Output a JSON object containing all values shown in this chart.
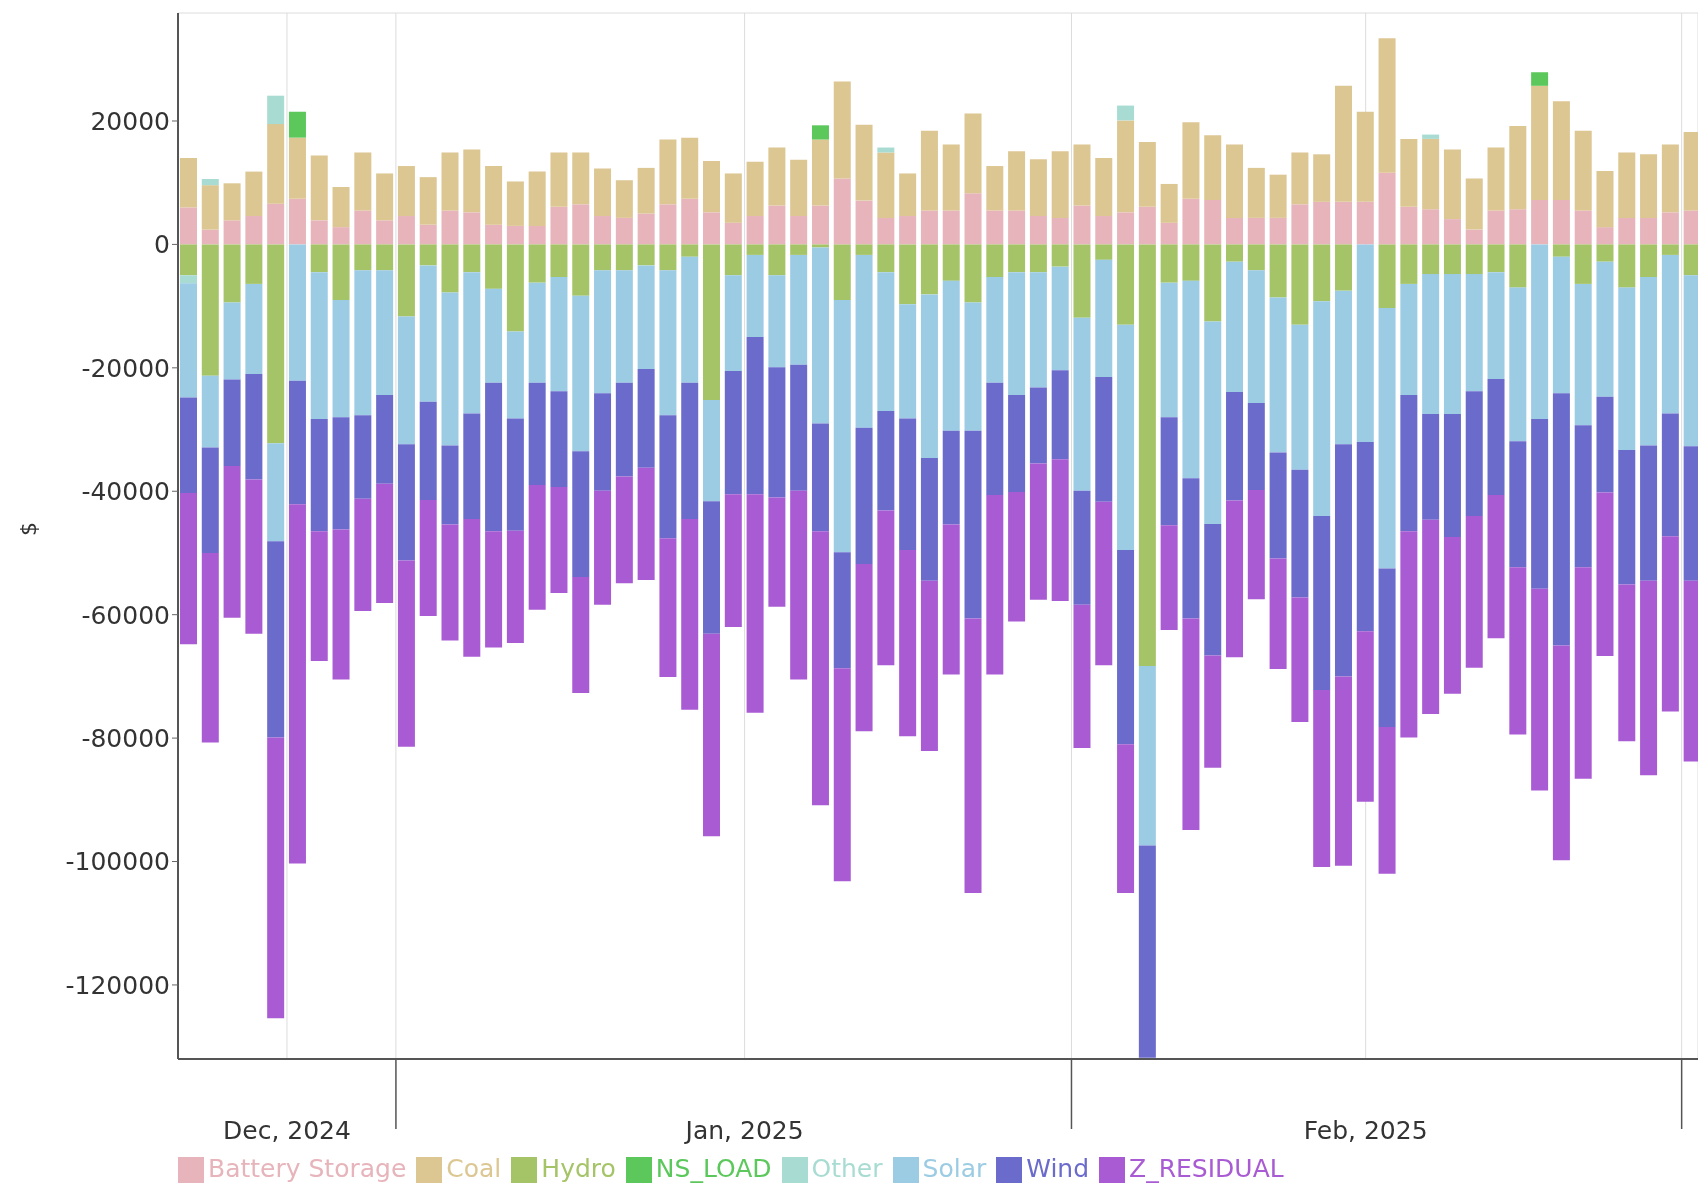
{
  "chart_data": {
    "type": "bar",
    "stacked": true,
    "ylabel": "$",
    "x": [
      "2024-12-22",
      "2024-12-23",
      "2024-12-24",
      "2024-12-25",
      "2024-12-26",
      "2024-12-27",
      "2024-12-28",
      "2024-12-29",
      "2024-12-30",
      "2024-12-31",
      "2025-01-01",
      "2025-01-02",
      "2025-01-03",
      "2025-01-04",
      "2025-01-05",
      "2025-01-06",
      "2025-01-07",
      "2025-01-08",
      "2025-01-09",
      "2025-01-10",
      "2025-01-11",
      "2025-01-12",
      "2025-01-13",
      "2025-01-14",
      "2025-01-15",
      "2025-01-16",
      "2025-01-17",
      "2025-01-18",
      "2025-01-19",
      "2025-01-20",
      "2025-01-21",
      "2025-01-22",
      "2025-01-23",
      "2025-01-24",
      "2025-01-25",
      "2025-01-26",
      "2025-01-27",
      "2025-01-28",
      "2025-01-29",
      "2025-01-30",
      "2025-01-31",
      "2025-02-01",
      "2025-02-02",
      "2025-02-03",
      "2025-02-04",
      "2025-02-05",
      "2025-02-06",
      "2025-02-07",
      "2025-02-08",
      "2025-02-09",
      "2025-02-10",
      "2025-02-11",
      "2025-02-12",
      "2025-02-13",
      "2025-02-14",
      "2025-02-15",
      "2025-02-16",
      "2025-02-17",
      "2025-02-18",
      "2025-02-19",
      "2025-02-20",
      "2025-02-21",
      "2025-02-22",
      "2025-02-23",
      "2025-02-24",
      "2025-02-25",
      "2025-02-26",
      "2025-02-27",
      "2025-02-28",
      "2025-03-01"
    ],
    "xlim": [
      "2024-12-21T12:00",
      "2025-03-01T06:00"
    ],
    "xticks": [
      {
        "value": "2024-12-26T12:00",
        "label": "Dec, 2024"
      },
      {
        "value": "2024-12-31T12:00",
        "label": null
      },
      {
        "value": "2025-01-16T12:00",
        "label": "Jan, 2025"
      },
      {
        "value": "2025-01-31T12:00",
        "label": null
      },
      {
        "value": "2025-02-14T00:00",
        "label": "Feb, 2025"
      },
      {
        "value": "2025-02-28T12:00",
        "label": null
      }
    ],
    "ylim": [
      -132000,
      37500
    ],
    "yticks": [
      20000,
      0,
      -20000,
      -40000,
      -60000,
      -80000,
      -100000,
      -120000
    ],
    "grid": true,
    "legend": "bottom",
    "series": [
      {
        "name": "Battery Storage",
        "color": "#e6b4ba",
        "values": [
          6000,
          2400,
          3900,
          4600,
          6600,
          7400,
          3900,
          2800,
          5500,
          3900,
          4600,
          3200,
          5500,
          5200,
          3200,
          3000,
          3000,
          6100,
          6500,
          4600,
          4300,
          5000,
          6500,
          7400,
          5200,
          3500,
          4600,
          6300,
          4600,
          6300,
          10700,
          7100,
          4300,
          4600,
          5500,
          5500,
          8300,
          5500,
          5500,
          4600,
          4300,
          6300,
          4600,
          5200,
          6100,
          3500,
          7400,
          7200,
          4300,
          4300,
          4300,
          6500,
          6900,
          6900,
          6900,
          11600,
          6100,
          5700,
          4100,
          2400,
          5500,
          5700,
          7200,
          7200,
          5500,
          2800,
          4300,
          4300,
          5200,
          5500
        ]
      },
      {
        "name": "Coal",
        "color": "#dcc692",
        "values": [
          8000,
          7200,
          6000,
          7200,
          12900,
          9900,
          10500,
          6500,
          9400,
          7600,
          8100,
          7700,
          9400,
          10200,
          9500,
          7200,
          8800,
          8800,
          8400,
          7700,
          6100,
          7400,
          10500,
          9900,
          8300,
          8000,
          8800,
          9400,
          9100,
          10700,
          15700,
          12300,
          10600,
          6900,
          12900,
          10700,
          12900,
          7200,
          9600,
          9200,
          10800,
          9900,
          9400,
          14900,
          10500,
          6300,
          12400,
          10500,
          11900,
          8100,
          7000,
          8400,
          7700,
          18800,
          14600,
          21800,
          11000,
          11400,
          11300,
          8300,
          10200,
          13500,
          18500,
          16000,
          12900,
          9100,
          10600,
          10300,
          11000,
          12700
        ]
      },
      {
        "name": "Hydro",
        "color": "#a5c468",
        "values": [
          -5000,
          -21300,
          -9400,
          -6400,
          -32200,
          0,
          -4500,
          -9000,
          -4200,
          -4200,
          -11700,
          -3400,
          -7800,
          -4500,
          -7200,
          -14100,
          -6200,
          -5300,
          -8300,
          -4200,
          -4200,
          -3400,
          -4200,
          -2000,
          -25200,
          -5000,
          -1700,
          -5000,
          -1700,
          -500,
          -9000,
          -1700,
          -4500,
          -9700,
          -8100,
          -5900,
          -9400,
          -5300,
          -4500,
          -4500,
          -3600,
          -11900,
          -2500,
          -13000,
          -68300,
          -6200,
          -5900,
          -12500,
          -2800,
          -4200,
          -8600,
          -13000,
          -9200,
          -7500,
          0,
          -10300,
          -6400,
          -4800,
          -4800,
          -4800,
          -4500,
          -7000,
          0,
          -2000,
          -6400,
          -2800,
          -7000,
          -5300,
          -1700,
          -5000
        ]
      },
      {
        "name": "NS_LOAD",
        "color": "#5cc85c",
        "values": [
          0,
          0,
          0,
          0,
          0,
          4200,
          0,
          0,
          0,
          0,
          0,
          0,
          0,
          0,
          0,
          0,
          0,
          0,
          0,
          0,
          0,
          0,
          0,
          0,
          0,
          0,
          0,
          0,
          0,
          2300,
          0,
          0,
          0,
          0,
          0,
          0,
          0,
          0,
          0,
          0,
          0,
          0,
          0,
          0,
          0,
          0,
          0,
          0,
          0,
          0,
          0,
          0,
          0,
          0,
          0,
          0,
          0,
          0,
          0,
          0,
          0,
          0,
          2200,
          0,
          0,
          0,
          0,
          0,
          0,
          0
        ]
      },
      {
        "name": "Other",
        "color": "#a8dcd2",
        "values": [
          -1300,
          1000,
          0,
          0,
          4600,
          0,
          0,
          0,
          0,
          0,
          0,
          0,
          0,
          0,
          0,
          0,
          0,
          0,
          0,
          0,
          0,
          0,
          0,
          0,
          0,
          0,
          0,
          0,
          0,
          0,
          0,
          0,
          800,
          0,
          0,
          0,
          0,
          0,
          0,
          0,
          0,
          0,
          0,
          2400,
          0,
          0,
          0,
          0,
          0,
          0,
          0,
          0,
          0,
          0,
          0,
          0,
          0,
          700,
          0,
          0,
          0,
          0,
          0,
          0,
          0,
          0,
          0,
          0,
          0,
          0
        ]
      },
      {
        "name": "Solar",
        "color": "#9ccbe4",
        "values": [
          -18500,
          -11600,
          -12500,
          -14600,
          -15900,
          -22100,
          -23800,
          -19000,
          -23500,
          -20200,
          -20700,
          -22100,
          -24800,
          -22900,
          -15200,
          -14100,
          -16200,
          -18500,
          -25200,
          -19900,
          -18200,
          -16800,
          -23500,
          -20400,
          -16400,
          -15500,
          -13300,
          -14900,
          -17800,
          -28500,
          -40900,
          -28000,
          -22500,
          -18500,
          -26500,
          -24300,
          -20800,
          -17100,
          -19900,
          -18700,
          -16800,
          -28000,
          -19000,
          -36500,
          -29100,
          -21800,
          -32000,
          -32800,
          -21100,
          -21500,
          -25100,
          -23500,
          -34800,
          -24900,
          -32000,
          -42200,
          -18000,
          -22700,
          -22700,
          -19000,
          -17300,
          -24900,
          -28300,
          -22100,
          -22900,
          -21900,
          -26300,
          -27300,
          -25700,
          -27700
        ]
      },
      {
        "name": "Wind",
        "color": "#6b6bcc",
        "values": [
          -15500,
          -17100,
          -14000,
          -17100,
          -31800,
          -20000,
          -18200,
          -18200,
          -13500,
          -14400,
          -18800,
          -15900,
          -12800,
          -17100,
          -24100,
          -18200,
          -16600,
          -15500,
          -20400,
          -15800,
          -15200,
          -16000,
          -19900,
          -22100,
          -21500,
          -20000,
          -25500,
          -21100,
          -20400,
          -17500,
          -18800,
          -22100,
          -16100,
          -21300,
          -19900,
          -15200,
          -30400,
          -18200,
          -15700,
          -12300,
          -14400,
          -18500,
          -20200,
          -31500,
          -34400,
          -17500,
          -22700,
          -21300,
          -17600,
          -14100,
          -17200,
          -20700,
          -28200,
          -37600,
          -30700,
          -25700,
          -22100,
          -17100,
          -19900,
          -20200,
          -18800,
          -20400,
          -27500,
          -40900,
          -23000,
          -15500,
          -21800,
          -21900,
          -19900,
          -21800
        ]
      },
      {
        "name": "Z_RESIDUAL",
        "color": "#a95bd3",
        "values": [
          -24500,
          -30700,
          -24600,
          -25000,
          -45500,
          -58200,
          -21000,
          -24300,
          -18200,
          -19300,
          -30200,
          -18800,
          -18800,
          -22300,
          -18800,
          -18200,
          -20200,
          -17200,
          -18800,
          -18500,
          -17300,
          -18200,
          -22500,
          -30900,
          -32800,
          -21500,
          -35400,
          -17700,
          -30600,
          -44400,
          -34500,
          -27100,
          -25100,
          -30200,
          -27600,
          -24300,
          -44500,
          -29100,
          -21000,
          -22100,
          -23000,
          -23200,
          -26500,
          -24100,
          null,
          -17000,
          -34300,
          -18200,
          -25400,
          -17700,
          -17900,
          -20200,
          -28700,
          -30700,
          -27600,
          -23800,
          -33400,
          -31500,
          -25400,
          -24600,
          -23200,
          -27100,
          -32700,
          -34800,
          -34300,
          -26500,
          -25400,
          -31500,
          -28400,
          -29300
        ]
      }
    ]
  }
}
